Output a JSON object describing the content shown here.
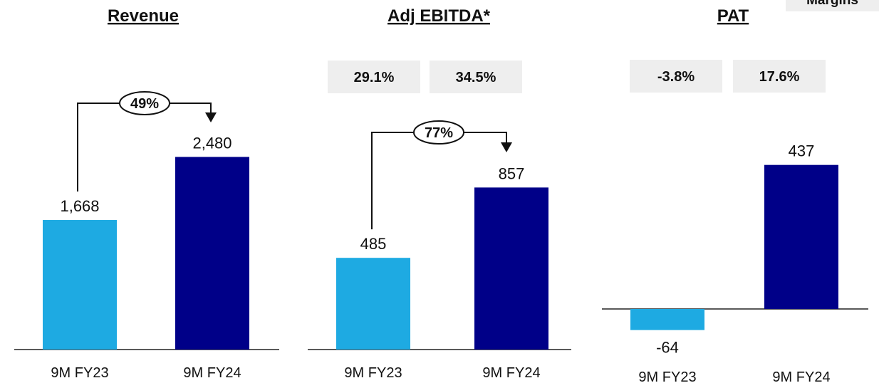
{
  "legend_tag": "Margins",
  "colors": {
    "fy23": "#1eaae2",
    "fy24": "#000088",
    "margin_box": "#eeeeee",
    "text": "#111111"
  },
  "chart_data": [
    {
      "type": "bar",
      "title": "Revenue",
      "categories": [
        "9M FY23",
        "9M FY24"
      ],
      "values": [
        1668,
        2480
      ],
      "value_labels": [
        "1,668",
        "2,480"
      ],
      "growth_label": "49%",
      "margins": []
    },
    {
      "type": "bar",
      "title": "Adj EBITDA*",
      "categories": [
        "9M FY23",
        "9M FY24"
      ],
      "values": [
        485,
        857
      ],
      "value_labels": [
        "485",
        "857"
      ],
      "growth_label": "77%",
      "margins": [
        "29.1%",
        "34.5%"
      ]
    },
    {
      "type": "bar",
      "title": "PAT",
      "categories": [
        "9M FY23",
        "9M FY24"
      ],
      "values": [
        -64,
        437
      ],
      "value_labels": [
        "-64",
        "437"
      ],
      "growth_label": "",
      "margins": [
        "-3.8%",
        "17.6%"
      ]
    }
  ]
}
